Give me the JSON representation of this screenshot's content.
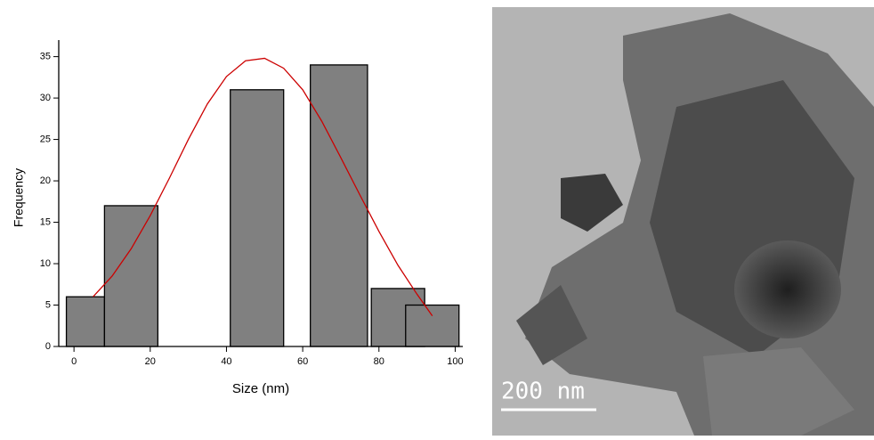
{
  "chart_data": {
    "type": "bar",
    "x_label": "Size (nm)",
    "y_label": "Frequency",
    "x_start": [
      -2,
      8,
      41,
      62,
      78,
      87
    ],
    "x_end": [
      8,
      22,
      55,
      77,
      92,
      101
    ],
    "values": [
      6,
      17,
      31,
      34,
      7,
      5
    ],
    "color": "#808080",
    "fit": {
      "color": "#cc0000",
      "x": [
        5,
        10,
        15,
        20,
        25,
        30,
        35,
        40,
        45,
        50,
        55,
        60,
        65,
        70,
        75,
        80,
        85,
        90,
        94
      ],
      "values": [
        6,
        8.5,
        11.8,
        15.8,
        20.3,
        25,
        29.3,
        32.6,
        34.5,
        34.8,
        33.6,
        31,
        27.2,
        22.8,
        18.3,
        13.9,
        9.8,
        6.3,
        3.7
      ]
    },
    "xlim": [
      -4,
      102
    ],
    "ylim": [
      0,
      37
    ],
    "xticks": [
      0,
      20,
      40,
      60,
      80,
      100
    ],
    "yticks": [
      0,
      5,
      10,
      15,
      20,
      25,
      30,
      35
    ]
  },
  "image": {
    "scale_bar_label": "200 nm"
  }
}
